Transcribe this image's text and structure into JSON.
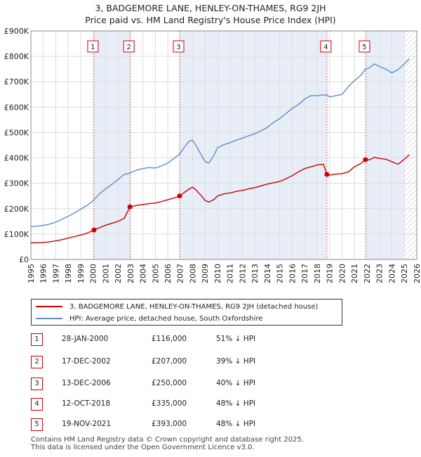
{
  "title_line1": "3, BADGEMORE LANE, HENLEY-ON-THAMES, RG9 2JH",
  "title_line2": "Price paid vs. HM Land Registry's House Price Index (HPI)",
  "legend": {
    "property_label": "3, BADGEMORE LANE, HENLEY-ON-THAMES, RG9 2JH (detached house)",
    "hpi_label": "HPI: Average price, detached house, South Oxfordshire"
  },
  "colors": {
    "property": "#cc0000",
    "hpi": "#5b8fc9",
    "shade": "#e8eef8"
  },
  "sales": [
    {
      "num": "1",
      "date": "28-JAN-2000",
      "price": "£116,000",
      "hpi_diff": "51% ↓ HPI"
    },
    {
      "num": "2",
      "date": "17-DEC-2002",
      "price": "£207,000",
      "hpi_diff": "39% ↓ HPI"
    },
    {
      "num": "3",
      "date": "13-DEC-2006",
      "price": "£250,000",
      "hpi_diff": "40% ↓ HPI"
    },
    {
      "num": "4",
      "date": "12-OCT-2018",
      "price": "£335,000",
      "hpi_diff": "48% ↓ HPI"
    },
    {
      "num": "5",
      "date": "19-NOV-2021",
      "price": "£393,000",
      "hpi_diff": "48% ↓ HPI"
    }
  ],
  "footer": {
    "line1": "Contains HM Land Registry data © Crown copyright and database right 2025.",
    "line2": "This data is licensed under the Open Government Licence v3.0."
  },
  "chart_data": {
    "type": "line",
    "title": "3, BADGEMORE LANE, HENLEY-ON-THAMES, RG9 2JH — Price paid vs. HM Land Registry's House Price Index (HPI)",
    "xlabel": "",
    "ylabel": "",
    "xlim": [
      1995,
      2026
    ],
    "ylim": [
      0,
      900000
    ],
    "x_ticks": [
      "1995",
      "1996",
      "1997",
      "1998",
      "1999",
      "2000",
      "2001",
      "2002",
      "2003",
      "2004",
      "2005",
      "2006",
      "2007",
      "2008",
      "2009",
      "2010",
      "2011",
      "2012",
      "2013",
      "2014",
      "2015",
      "2016",
      "2017",
      "2018",
      "2019",
      "2020",
      "2021",
      "2022",
      "2023",
      "2024",
      "2025",
      "2026"
    ],
    "y_ticks": [
      {
        "value": 0,
        "label": "£0"
      },
      {
        "value": 100000,
        "label": "£100K"
      },
      {
        "value": 200000,
        "label": "£200K"
      },
      {
        "value": 300000,
        "label": "£300K"
      },
      {
        "value": 400000,
        "label": "£400K"
      },
      {
        "value": 500000,
        "label": "£500K"
      },
      {
        "value": 600000,
        "label": "£600K"
      },
      {
        "value": 700000,
        "label": "£700K"
      },
      {
        "value": 800000,
        "label": "£800K"
      },
      {
        "value": 900000,
        "label": "£900K"
      }
    ],
    "grid": true,
    "hatched_from": 2025.0,
    "shaded_spans": [
      [
        2000.07,
        2002.96
      ],
      [
        2006.95,
        2018.78
      ],
      [
        2021.88,
        2025.0
      ]
    ],
    "series": [
      {
        "name": "3, BADGEMORE LANE, HENLEY-ON-THAMES, RG9 2JH (detached house)",
        "color": "#cc0000",
        "points": [
          [
            1995.0,
            65000
          ],
          [
            1995.5,
            66000
          ],
          [
            1996.0,
            67000
          ],
          [
            1996.5,
            69000
          ],
          [
            1997.0,
            73000
          ],
          [
            1997.5,
            78000
          ],
          [
            1998.0,
            84000
          ],
          [
            1998.5,
            90000
          ],
          [
            1999.0,
            96000
          ],
          [
            1999.5,
            103000
          ],
          [
            2000.07,
            116000
          ],
          [
            2000.5,
            125000
          ],
          [
            2001.0,
            135000
          ],
          [
            2001.5,
            142000
          ],
          [
            2002.0,
            150000
          ],
          [
            2002.5,
            162000
          ],
          [
            2002.96,
            207000
          ],
          [
            2003.5,
            213000
          ],
          [
            2004.0,
            216000
          ],
          [
            2004.5,
            220000
          ],
          [
            2005.0,
            222000
          ],
          [
            2005.5,
            228000
          ],
          [
            2006.0,
            235000
          ],
          [
            2006.5,
            242000
          ],
          [
            2006.95,
            250000
          ],
          [
            2007.3,
            263000
          ],
          [
            2007.7,
            277000
          ],
          [
            2008.0,
            285000
          ],
          [
            2008.3,
            272000
          ],
          [
            2008.7,
            250000
          ],
          [
            2009.0,
            232000
          ],
          [
            2009.3,
            226000
          ],
          [
            2009.7,
            236000
          ],
          [
            2010.0,
            250000
          ],
          [
            2010.5,
            258000
          ],
          [
            2011.0,
            262000
          ],
          [
            2011.5,
            268000
          ],
          [
            2012.0,
            272000
          ],
          [
            2012.5,
            278000
          ],
          [
            2013.0,
            283000
          ],
          [
            2013.5,
            290000
          ],
          [
            2014.0,
            297000
          ],
          [
            2014.5,
            302000
          ],
          [
            2015.0,
            307000
          ],
          [
            2015.5,
            318000
          ],
          [
            2016.0,
            330000
          ],
          [
            2016.5,
            345000
          ],
          [
            2017.0,
            358000
          ],
          [
            2017.5,
            365000
          ],
          [
            2018.0,
            372000
          ],
          [
            2018.5,
            375000
          ],
          [
            2018.78,
            335000
          ],
          [
            2019.0,
            332000
          ],
          [
            2019.5,
            336000
          ],
          [
            2020.0,
            338000
          ],
          [
            2020.5,
            345000
          ],
          [
            2021.0,
            365000
          ],
          [
            2021.5,
            378000
          ],
          [
            2021.88,
            393000
          ],
          [
            2022.2,
            392000
          ],
          [
            2022.6,
            402000
          ],
          [
            2023.0,
            398000
          ],
          [
            2023.5,
            395000
          ],
          [
            2024.0,
            385000
          ],
          [
            2024.5,
            375000
          ],
          [
            2025.0,
            395000
          ],
          [
            2025.4,
            412000
          ]
        ]
      },
      {
        "name": "HPI: Average price, detached house, South Oxfordshire",
        "color": "#5b8fc9",
        "points": [
          [
            1995.0,
            130000
          ],
          [
            1995.5,
            131000
          ],
          [
            1996.0,
            134000
          ],
          [
            1996.5,
            139000
          ],
          [
            1997.0,
            147000
          ],
          [
            1997.5,
            158000
          ],
          [
            1998.0,
            170000
          ],
          [
            1998.5,
            183000
          ],
          [
            1999.0,
            198000
          ],
          [
            1999.5,
            212000
          ],
          [
            2000.07,
            235000
          ],
          [
            2000.5,
            258000
          ],
          [
            2001.0,
            278000
          ],
          [
            2001.5,
            295000
          ],
          [
            2002.0,
            315000
          ],
          [
            2002.5,
            335000
          ],
          [
            2002.96,
            340000
          ],
          [
            2003.5,
            352000
          ],
          [
            2004.0,
            358000
          ],
          [
            2004.5,
            362000
          ],
          [
            2005.0,
            360000
          ],
          [
            2005.5,
            368000
          ],
          [
            2006.0,
            380000
          ],
          [
            2006.5,
            398000
          ],
          [
            2006.95,
            415000
          ],
          [
            2007.3,
            440000
          ],
          [
            2007.7,
            465000
          ],
          [
            2008.0,
            470000
          ],
          [
            2008.3,
            445000
          ],
          [
            2008.7,
            410000
          ],
          [
            2009.0,
            385000
          ],
          [
            2009.3,
            380000
          ],
          [
            2009.7,
            410000
          ],
          [
            2010.0,
            440000
          ],
          [
            2010.5,
            452000
          ],
          [
            2011.0,
            460000
          ],
          [
            2011.5,
            470000
          ],
          [
            2012.0,
            478000
          ],
          [
            2012.5,
            487000
          ],
          [
            2013.0,
            495000
          ],
          [
            2013.5,
            507000
          ],
          [
            2014.0,
            520000
          ],
          [
            2014.5,
            540000
          ],
          [
            2015.0,
            555000
          ],
          [
            2015.5,
            575000
          ],
          [
            2016.0,
            595000
          ],
          [
            2016.5,
            610000
          ],
          [
            2017.0,
            632000
          ],
          [
            2017.5,
            645000
          ],
          [
            2018.0,
            645000
          ],
          [
            2018.5,
            648000
          ],
          [
            2018.78,
            648000
          ],
          [
            2019.0,
            640000
          ],
          [
            2019.5,
            645000
          ],
          [
            2020.0,
            650000
          ],
          [
            2020.5,
            680000
          ],
          [
            2021.0,
            705000
          ],
          [
            2021.5,
            725000
          ],
          [
            2021.88,
            750000
          ],
          [
            2022.2,
            755000
          ],
          [
            2022.6,
            770000
          ],
          [
            2023.0,
            760000
          ],
          [
            2023.5,
            750000
          ],
          [
            2024.0,
            735000
          ],
          [
            2024.5,
            748000
          ],
          [
            2025.0,
            770000
          ],
          [
            2025.4,
            790000
          ]
        ]
      }
    ],
    "markers": [
      {
        "label": "1",
        "x": 2000.07,
        "y": 116000
      },
      {
        "label": "2",
        "x": 2002.96,
        "y": 207000
      },
      {
        "label": "3",
        "x": 2006.95,
        "y": 250000
      },
      {
        "label": "4",
        "x": 2018.78,
        "y": 335000
      },
      {
        "label": "5",
        "x": 2021.88,
        "y": 393000
      }
    ]
  }
}
